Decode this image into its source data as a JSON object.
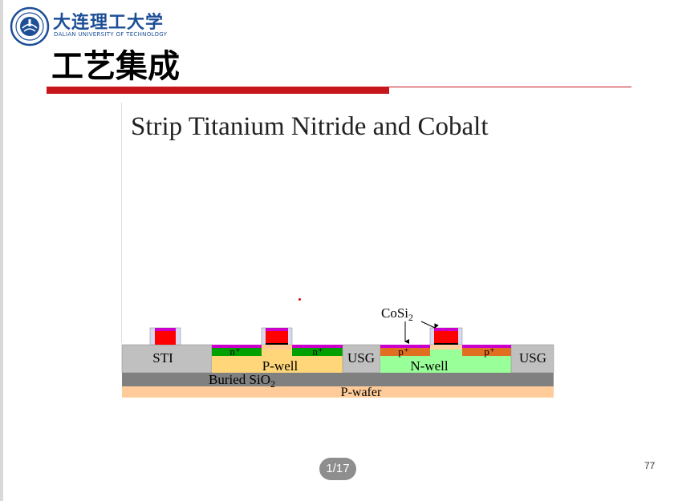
{
  "header": {
    "university_cn": "大连理工大学",
    "university_en": "DALIAN UNIVERSITY OF TECHNOLOGY"
  },
  "slide": {
    "title": "工艺集成",
    "figure_title": "Strip Titanium Nitride and Cobalt",
    "slide_number": "77"
  },
  "diagram_labels": {
    "sti": "STI",
    "usg_left": "USG",
    "usg_right": "USG",
    "p_well": "P-well",
    "n_well": "N-well",
    "n_plus_left": "n⁺",
    "n_plus_right": "n⁺",
    "p_plus_left": "p⁺",
    "p_plus_right": "p⁺",
    "buried_oxide_prefix": "Buried SiO",
    "buried_oxide_sub": "2",
    "p_wafer": "P-wafer",
    "cosi_prefix": "CoSi",
    "cosi_sub": "2"
  },
  "pager": {
    "label": "1/17"
  },
  "colors": {
    "brand_blue": "#1d4f97",
    "accent_red": "#c8161d",
    "gate_red": "#ff0000",
    "silicide_magenta": "#cc00cc",
    "sti_gray": "#c0c0c0",
    "buried_gray": "#808080",
    "p_well_yellow": "#ffd77a",
    "n_well_green": "#99ff99",
    "n_plus_green": "#00a000",
    "p_plus_orange": "#e07020",
    "wafer_peach": "#ffcc99"
  },
  "icons": {
    "logo": "university-seal-icon",
    "arrow": "arrow-down-icon"
  }
}
